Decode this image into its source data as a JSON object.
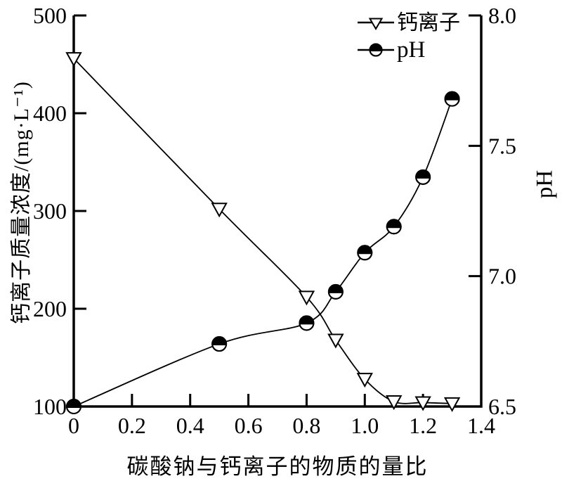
{
  "chart_data": {
    "type": "line",
    "title": "",
    "xlabel": "碳酸钠与钙离子的物质的量比",
    "ylabel_left": "钙离子质量浓度/(mg·L⁻¹)",
    "ylabel_right": "pH",
    "xlim": [
      0,
      1.4
    ],
    "x_ticks": [
      0,
      0.2,
      0.4,
      0.6,
      0.8,
      1.0,
      1.2,
      1.4
    ],
    "x_tick_labels": [
      "0",
      "0.2",
      "0.4",
      "0.6",
      "0.8",
      "1.0",
      "1.2",
      "1.4"
    ],
    "ylim_left": [
      100,
      500
    ],
    "y_ticks_left": [
      100,
      200,
      300,
      400,
      500
    ],
    "y_tick_labels_left": [
      "100",
      "200",
      "300",
      "400",
      "500"
    ],
    "ylim_right": [
      6.5,
      8.0
    ],
    "y_ticks_right": [
      6.5,
      7.0,
      7.5,
      8.0
    ],
    "y_tick_labels_right": [
      "6.5",
      "7.0",
      "7.5",
      "8.0"
    ],
    "grid": false,
    "series": [
      {
        "name": "钙离子",
        "axis": "left",
        "marker": "open-triangle-down",
        "color": "#000000",
        "x": [
          0,
          0.5,
          0.8,
          0.9,
          1.0,
          1.1,
          1.2,
          1.3
        ],
        "values": [
          456,
          302,
          212,
          168,
          128,
          105,
          104,
          103
        ]
      },
      {
        "name": "pH",
        "axis": "right",
        "marker": "half-filled-circle",
        "color": "#000000",
        "x": [
          0,
          0.5,
          0.8,
          0.9,
          1.0,
          1.1,
          1.2,
          1.3
        ],
        "values": [
          6.5,
          6.74,
          6.82,
          6.94,
          7.09,
          7.19,
          7.38,
          7.68
        ]
      }
    ],
    "legend": {
      "position": "top-right-inside",
      "entries": [
        {
          "label": "钙离子",
          "marker": "open-triangle-down"
        },
        {
          "label": "pH",
          "marker": "half-filled-circle"
        }
      ]
    },
    "colors": {
      "axis": "#000000",
      "line": "#000000",
      "background": "#ffffff"
    }
  }
}
